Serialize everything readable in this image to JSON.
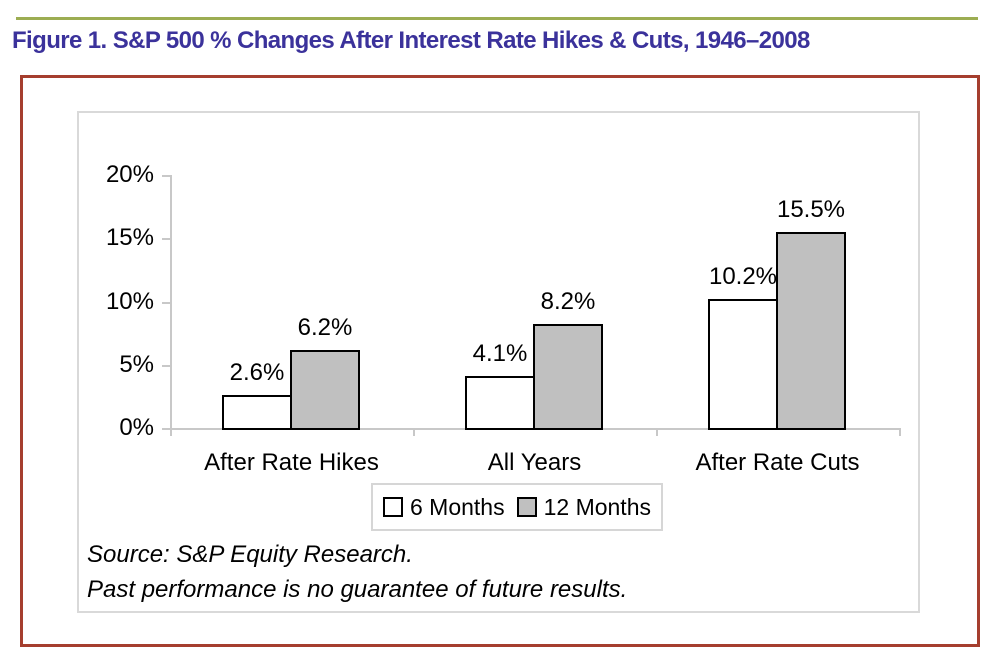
{
  "page": {
    "title": "Figure 1. S&P 500 % Changes After Interest Rate Hikes & Cuts, 1946–2008"
  },
  "chart_data": {
    "type": "bar",
    "title": "Figure 1. S&P 500 % Changes After Interest Rate Hikes & Cuts, 1946–2008",
    "categories": [
      "After Rate Hikes",
      "All Years",
      "After Rate Cuts"
    ],
    "series": [
      {
        "name": "6 Months",
        "fill": "#FFFFFF",
        "values": [
          2.6,
          4.1,
          10.2
        ]
      },
      {
        "name": "12 Months",
        "fill": "#C0C0C0",
        "values": [
          6.2,
          8.2,
          15.5
        ]
      }
    ],
    "value_labels": [
      [
        "2.6%",
        "4.1%",
        "10.2%"
      ],
      [
        "6.2%",
        "8.2%",
        "15.5%"
      ]
    ],
    "value_suffix": "%",
    "ylim": [
      0,
      20
    ],
    "y_ticks": [
      {
        "value": 0,
        "label": "0%"
      },
      {
        "value": 5,
        "label": "5%"
      },
      {
        "value": 10,
        "label": "10%"
      },
      {
        "value": 15,
        "label": "15%"
      },
      {
        "value": 20,
        "label": "20%"
      }
    ],
    "grid": false,
    "legend_position": "bottom-center",
    "bar_border_color": "#000000",
    "axis_color": "#C8C8C8"
  },
  "footer": {
    "source_line": "Source: S&P Equity Research.",
    "disclaimer_line": "Past performance is no guarantee of future results."
  },
  "colors": {
    "title_text": "#3B329B",
    "accent_rule": "#9CAD52",
    "frame_border": "#A53E2E",
    "series_6_months_fill": "#FFFFFF",
    "series_12_months_fill": "#C0C0C0"
  }
}
